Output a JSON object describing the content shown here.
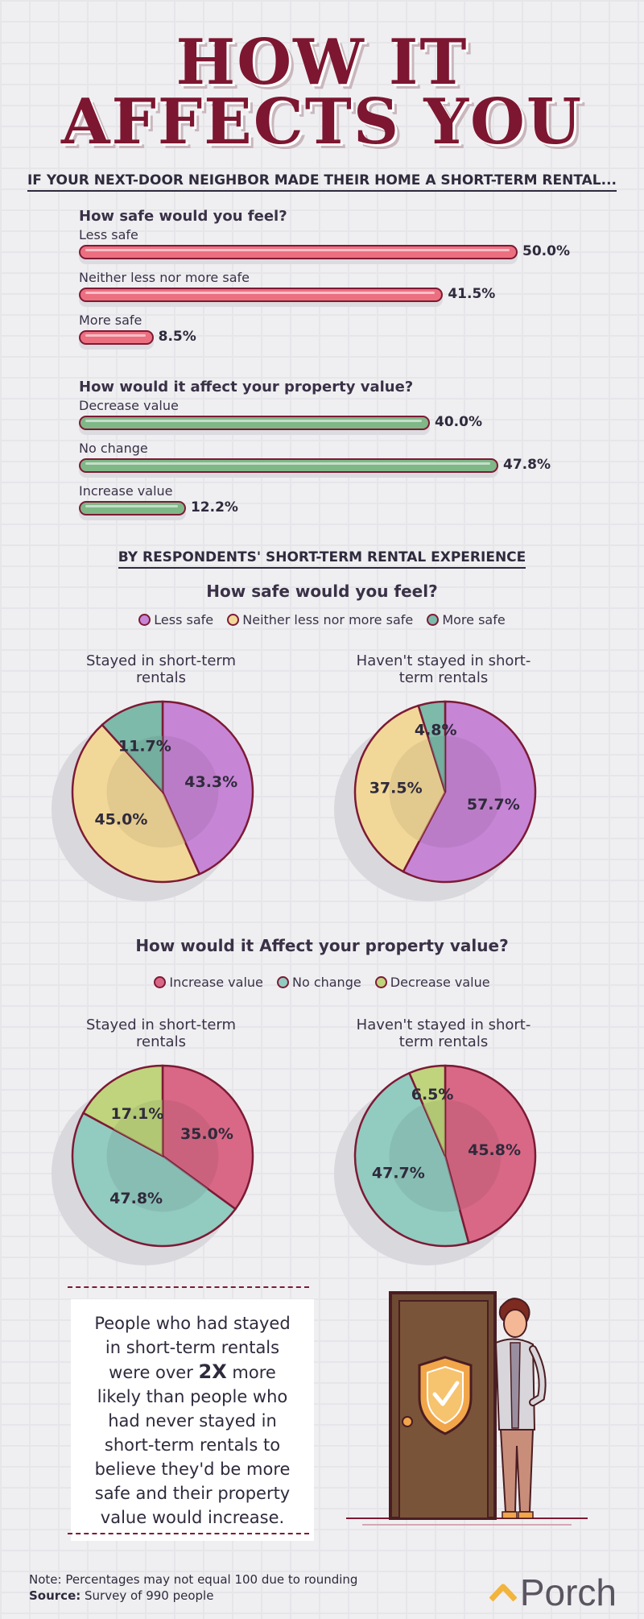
{
  "title_line1": "HOW IT",
  "title_line2": "AFFECTS YOU",
  "section1_heading": "IF YOUR NEXT-DOOR NEIGHBOR MADE THEIR HOME A SHORT-TERM RENTAL...",
  "section2_heading": "BY RESPONDENTS' SHORT-TERM RENTAL EXPERIENCE",
  "callout": {
    "before": "People who had stayed in short-term rentals were over ",
    "emphasis": "2X",
    "after": " more likely than people who had never stayed in short-term rentals to believe they'd be more safe and their property value would increase."
  },
  "footer": {
    "note": "Note: Percentages may not equal 100 due to rounding",
    "source_label": "Source:",
    "source_text": " Survey of 990 people"
  },
  "brand": "Porch",
  "colors": {
    "title": "#7d1630",
    "outline": "#7d1a35",
    "red_bar": "#ec6f80",
    "green_bar": "#7fb787",
    "purple": "#c785d6",
    "yellow": "#f2d898",
    "teal": "#7dbaa9",
    "pink": "#d96886",
    "light_teal": "#92cbc0",
    "olive": "#bfd47d"
  },
  "chart_data": [
    {
      "type": "bar",
      "orientation": "horizontal",
      "title": "How safe would you feel?",
      "categories": [
        "Less safe",
        "Neither less nor more safe",
        "More safe"
      ],
      "values": [
        50.0,
        41.5,
        8.5
      ],
      "value_labels": [
        "50.0%",
        "41.5%",
        "8.5%"
      ],
      "color": "#ec6f80",
      "xlim": [
        0,
        50
      ]
    },
    {
      "type": "bar",
      "orientation": "horizontal",
      "title": "How would it affect your property value?",
      "categories": [
        "Decrease value",
        "No change",
        "Increase value"
      ],
      "values": [
        40.0,
        47.8,
        12.2
      ],
      "value_labels": [
        "40.0%",
        "47.8%",
        "12.2%"
      ],
      "color": "#7fb787",
      "xlim": [
        0,
        50
      ]
    },
    {
      "type": "pie",
      "group_title": "How safe would you feel?",
      "title": "Stayed in short-term rentals",
      "categories": [
        "Less safe",
        "Neither less nor more safe",
        "More safe"
      ],
      "values": [
        43.3,
        45.0,
        11.7
      ],
      "value_labels": [
        "43.3%",
        "45.0%",
        "11.7%"
      ],
      "colors": [
        "#c785d6",
        "#f2d898",
        "#7dbaa9"
      ]
    },
    {
      "type": "pie",
      "group_title": "How safe would you feel?",
      "title": "Haven't stayed in short-term rentals",
      "categories": [
        "Less safe",
        "Neither less nor more safe",
        "More safe"
      ],
      "values": [
        57.7,
        37.5,
        4.8
      ],
      "value_labels": [
        "57.7%",
        "37.5%",
        "4.8%"
      ],
      "colors": [
        "#c785d6",
        "#f2d898",
        "#7dbaa9"
      ]
    },
    {
      "type": "pie",
      "group_title": "How would it Affect your property value?",
      "title": "Stayed in short-term rentals",
      "categories": [
        "Increase value",
        "No change",
        "Decrease value"
      ],
      "values": [
        35.0,
        47.8,
        17.1
      ],
      "value_labels": [
        "35.0%",
        "47.8%",
        "17.1%"
      ],
      "colors": [
        "#d96886",
        "#92cbc0",
        "#bfd47d"
      ]
    },
    {
      "type": "pie",
      "group_title": "How would it Affect your property value?",
      "title": "Haven't stayed in short-term rentals",
      "categories": [
        "Increase value",
        "No change",
        "Decrease value"
      ],
      "values": [
        45.8,
        47.7,
        6.5
      ],
      "value_labels": [
        "45.8%",
        "47.7%",
        "6.5%"
      ],
      "colors": [
        "#d96886",
        "#92cbc0",
        "#bfd47d"
      ]
    }
  ]
}
